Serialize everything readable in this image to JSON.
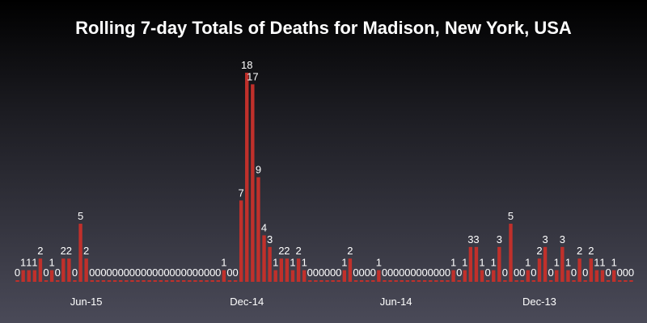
{
  "chart_data": {
    "type": "bar",
    "title": "Rolling 7-day Totals of Deaths for Madison, New York, USA",
    "xlabel": "",
    "ylabel": "",
    "ylim": [
      0,
      18
    ],
    "x_ticks": [
      "Jun-15",
      "Dec-14",
      "Jun-14",
      "Dec-13"
    ],
    "bar_color": "#c0302b",
    "label_color": "#ffffff",
    "values": [
      0,
      1,
      1,
      1,
      2,
      0,
      1,
      0,
      2,
      2,
      0,
      5,
      2,
      0,
      0,
      0,
      0,
      0,
      0,
      0,
      0,
      0,
      0,
      0,
      0,
      0,
      0,
      0,
      0,
      0,
      0,
      0,
      0,
      0,
      0,
      0,
      1,
      0,
      0,
      7,
      18,
      17,
      9,
      4,
      3,
      1,
      2,
      2,
      1,
      2,
      1,
      0,
      0,
      0,
      0,
      0,
      0,
      1,
      2,
      0,
      0,
      0,
      0,
      1,
      0,
      0,
      0,
      0,
      0,
      0,
      0,
      0,
      0,
      0,
      0,
      0,
      1,
      0,
      1,
      3,
      3,
      1,
      0,
      1,
      3,
      0,
      5,
      0,
      0,
      1,
      0,
      2,
      3,
      0,
      1,
      3,
      1,
      0,
      2,
      0,
      2,
      1,
      1,
      0,
      1,
      0,
      0,
      0
    ]
  }
}
